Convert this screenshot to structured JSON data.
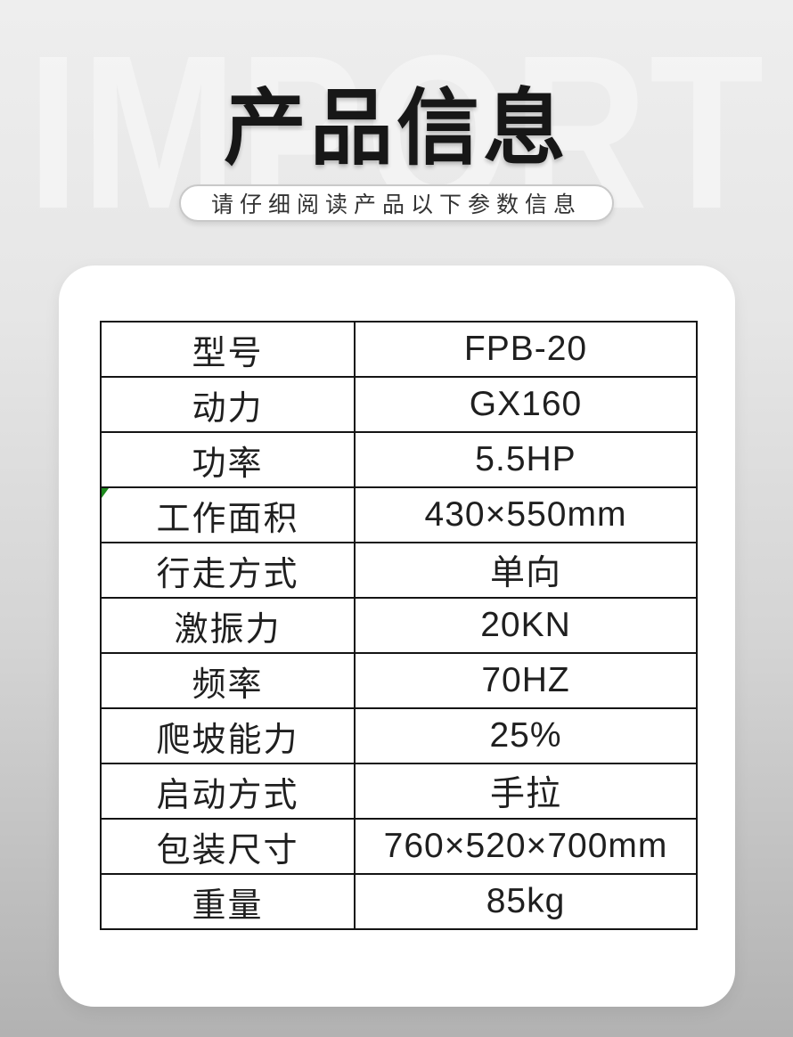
{
  "page": {
    "watermark": "IMPORT",
    "title": "产品信息",
    "subtitle": "请仔细阅读产品以下参数信息"
  },
  "colors": {
    "bg_top": "#eeeeee",
    "bg_bottom": "#b2b2b2",
    "table_border": "#141414",
    "text_dark": "#1f1f1f",
    "marker_green": "#1e8a1e",
    "watermark": "#f7f7f7"
  },
  "spec_table": {
    "rows": [
      {
        "label": "型号",
        "value": "FPB-20"
      },
      {
        "label": "动力",
        "value": "GX160"
      },
      {
        "label": "功率",
        "value": "5.5HP"
      },
      {
        "label": "工作面积",
        "value": "430×550mm",
        "marker": "green-corner-triangle"
      },
      {
        "label": "行走方式",
        "value": "单向"
      },
      {
        "label": "激振力",
        "value": "20KN"
      },
      {
        "label": "频率",
        "value": "70HZ"
      },
      {
        "label": "爬坡能力",
        "value": "25%"
      },
      {
        "label": "启动方式",
        "value": "手拉"
      },
      {
        "label": "包装尺寸",
        "value": "760×520×700mm"
      },
      {
        "label": "重量",
        "value": "85kg"
      }
    ]
  }
}
